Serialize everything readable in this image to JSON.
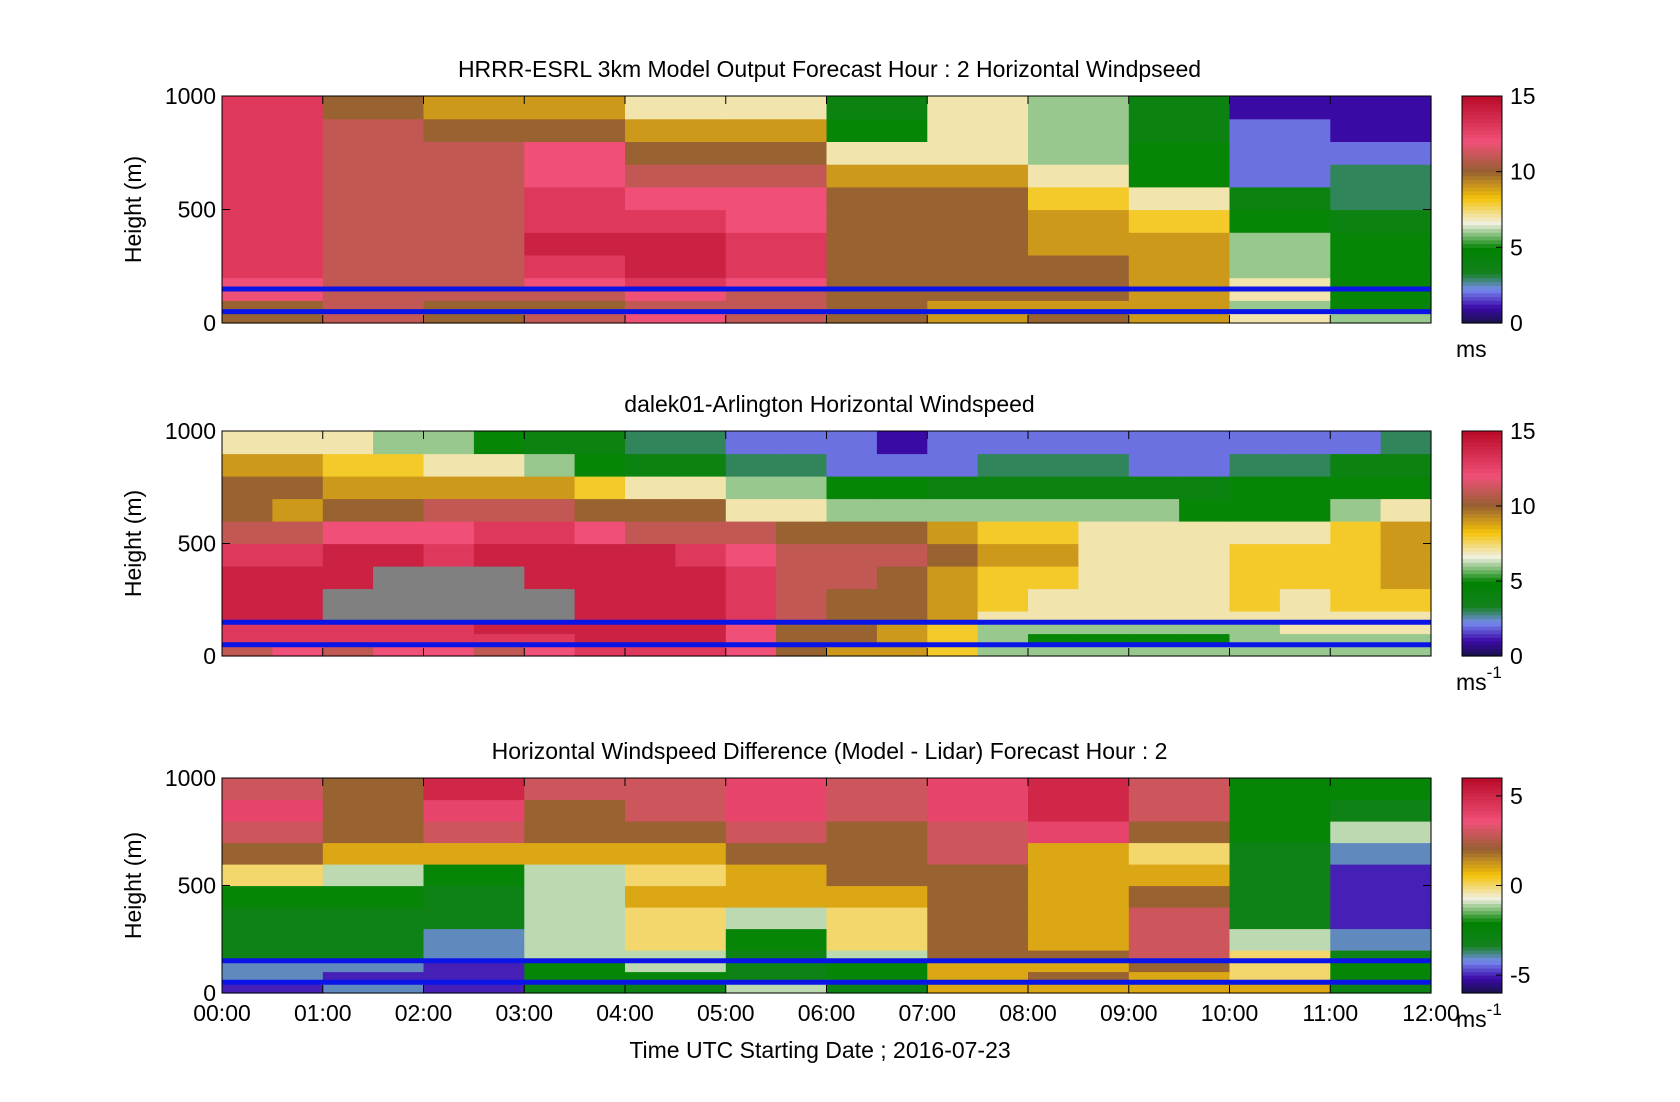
{
  "figure": {
    "xlabel": "Time UTC  Starting Date ; 2016-07-23",
    "x_ticks": [
      "00:00",
      "01:00",
      "02:00",
      "03:00",
      "04:00",
      "05:00",
      "06:00",
      "07:00",
      "08:00",
      "09:00",
      "10:00",
      "11:00",
      "12:00"
    ]
  },
  "colors": {
    "reference_lines": "#0a14e6",
    "missing": "#808080"
  },
  "chart_data": [
    {
      "type": "heatmap",
      "title": "HRRR-ESRL 3km Model Output   Forecast Hour : 2 Horizontal Windpseed",
      "ylabel": "Height (m)",
      "ylim": [
        0,
        1000
      ],
      "y_ticks": [
        "0",
        "500",
        "1000"
      ],
      "xlim_hours": [
        0,
        12
      ],
      "reference_heights_m": [
        150,
        50
      ],
      "colorbar": {
        "range": [
          0,
          15
        ],
        "ticks": [
          "0",
          "5",
          "10",
          "15"
        ],
        "unit": "ms",
        "unit_sup": ""
      },
      "time_hours": [
        0,
        1,
        2,
        3,
        4,
        5,
        6,
        7,
        8,
        9,
        10,
        11
      ],
      "heights_m": [
        0,
        50,
        100,
        150,
        200,
        300,
        400,
        500,
        600,
        700,
        800,
        900
      ],
      "values": [
        [
          10,
          11,
          10,
          11,
          12,
          11,
          10,
          9,
          10,
          9,
          7,
          6
        ],
        [
          10,
          11,
          10,
          10,
          11,
          11,
          10,
          9,
          9,
          9,
          6,
          5
        ],
        [
          12,
          11,
          11,
          11,
          12,
          11,
          10,
          10,
          10,
          9,
          7,
          5
        ],
        [
          12,
          11,
          11,
          12,
          13,
          12,
          10,
          10,
          10,
          9,
          7,
          5
        ],
        [
          13,
          11,
          11,
          13,
          14,
          13,
          10,
          10,
          10,
          9,
          6,
          5
        ],
        [
          13,
          11,
          11,
          14,
          14,
          13,
          10,
          10,
          9,
          9,
          6,
          5
        ],
        [
          13,
          11,
          11,
          13,
          13,
          12,
          10,
          10,
          9,
          8,
          5,
          4
        ],
        [
          13,
          11,
          11,
          13,
          12,
          12,
          10,
          10,
          8,
          7,
          4,
          3
        ],
        [
          13,
          11,
          11,
          12,
          11,
          11,
          9,
          9,
          7,
          5,
          2,
          3
        ],
        [
          13,
          11,
          11,
          12,
          10,
          10,
          7,
          7,
          6,
          5,
          2,
          2
        ],
        [
          13,
          11,
          10,
          10,
          9,
          9,
          5,
          7,
          6,
          4,
          2,
          1
        ],
        [
          13,
          10,
          9,
          9,
          7,
          7,
          4,
          7,
          6,
          4,
          1,
          1
        ]
      ]
    },
    {
      "type": "heatmap",
      "title": "dalek01-Arlington  Horizontal Windspeed",
      "ylabel": "Height (m)",
      "ylim": [
        0,
        1000
      ],
      "y_ticks": [
        "0",
        "500",
        "1000"
      ],
      "xlim_hours": [
        0,
        12
      ],
      "reference_heights_m": [
        150,
        50
      ],
      "colorbar": {
        "range": [
          0,
          15
        ],
        "ticks": [
          "0",
          "5",
          "10",
          "15"
        ],
        "unit": "ms",
        "unit_sup": "-1"
      },
      "time_hours": [
        0,
        0.5,
        1,
        1.5,
        2,
        2.5,
        3,
        3.5,
        4,
        4.5,
        5,
        5.5,
        6,
        6.5,
        7,
        7.5,
        8,
        8.5,
        9,
        9.5,
        10,
        10.5,
        11,
        11.5
      ],
      "heights_m": [
        0,
        50,
        100,
        150,
        200,
        300,
        400,
        500,
        600,
        700,
        800,
        900
      ],
      "values": [
        [
          11,
          12,
          11,
          12,
          12,
          11,
          12,
          13,
          13,
          13,
          12,
          10,
          9,
          9,
          8,
          6,
          6,
          6,
          6,
          6,
          6,
          6,
          6,
          6
        ],
        [
          13,
          13,
          13,
          13,
          13,
          13,
          13,
          14,
          14,
          14,
          12,
          10,
          10,
          9,
          8,
          6,
          5,
          5,
          5,
          5,
          6,
          6,
          6,
          6
        ],
        [
          13,
          13,
          13,
          13,
          13,
          14,
          14,
          14,
          14,
          14,
          12,
          10,
          10,
          9,
          8,
          6,
          6,
          6,
          6,
          6,
          6,
          7,
          7,
          7
        ],
        [
          14,
          14,
          -1,
          -1,
          -1,
          -1,
          -1,
          14,
          14,
          14,
          13,
          11,
          10,
          10,
          9,
          7,
          7,
          7,
          7,
          7,
          7,
          7,
          7,
          7
        ],
        [
          14,
          14,
          -1,
          -1,
          -1,
          -1,
          -1,
          14,
          14,
          14,
          13,
          11,
          10,
          10,
          9,
          8,
          7,
          7,
          7,
          7,
          8,
          7,
          8,
          8
        ],
        [
          14,
          14,
          14,
          -1,
          -1,
          -1,
          14,
          14,
          14,
          14,
          13,
          11,
          11,
          10,
          9,
          8,
          8,
          7,
          7,
          7,
          8,
          8,
          8,
          9
        ],
        [
          13,
          13,
          14,
          14,
          13,
          14,
          14,
          14,
          14,
          13,
          12,
          11,
          11,
          11,
          10,
          9,
          9,
          7,
          7,
          7,
          8,
          8,
          8,
          9
        ],
        [
          11,
          11,
          12,
          12,
          12,
          13,
          13,
          12,
          11,
          11,
          11,
          10,
          10,
          10,
          9,
          8,
          8,
          7,
          7,
          7,
          7,
          7,
          8,
          9
        ],
        [
          10,
          9,
          10,
          10,
          11,
          11,
          11,
          10,
          10,
          10,
          7,
          7,
          6,
          6,
          6,
          6,
          6,
          6,
          6,
          5,
          5,
          5,
          6,
          7
        ],
        [
          10,
          10,
          9,
          9,
          9,
          9,
          9,
          8,
          7,
          7,
          6,
          6,
          5,
          5,
          4,
          4,
          4,
          4,
          4,
          4,
          5,
          5,
          5,
          5
        ],
        [
          9,
          9,
          8,
          8,
          7,
          7,
          6,
          5,
          4,
          4,
          3,
          3,
          2,
          2,
          2,
          3,
          3,
          3,
          2,
          2,
          3,
          3,
          4,
          4
        ],
        [
          7,
          7,
          7,
          6,
          6,
          5,
          4,
          4,
          3,
          3,
          2,
          2,
          2,
          1,
          2,
          2,
          2,
          2,
          2,
          2,
          2,
          2,
          2,
          3
        ]
      ]
    },
    {
      "type": "heatmap",
      "title": "Horizontal Windspeed Difference (Model - Lidar) Forecast Hour : 2",
      "ylabel": "Height (m)",
      "ylim": [
        0,
        1000
      ],
      "y_ticks": [
        "0",
        "500",
        "1000"
      ],
      "xlim_hours": [
        0,
        12
      ],
      "reference_heights_m": [
        150,
        50
      ],
      "colorbar": {
        "range": [
          -6,
          6
        ],
        "ticks": [
          "-5",
          "0",
          "5"
        ],
        "unit": "ms",
        "unit_sup": "-1"
      },
      "time_hours": [
        0,
        1,
        2,
        3,
        4,
        5,
        6,
        7,
        8,
        9,
        10,
        11
      ],
      "heights_m": [
        0,
        50,
        100,
        150,
        200,
        300,
        400,
        500,
        600,
        700,
        800,
        900
      ],
      "values": [
        [
          -5,
          -4,
          -5,
          -3,
          -3,
          -1,
          -3,
          1,
          1,
          1,
          1,
          -3
        ],
        [
          -4,
          -5,
          -5,
          -2,
          -2,
          -3,
          -2,
          1,
          2,
          1,
          0,
          -2
        ],
        [
          -4,
          -4,
          -5,
          -2,
          -1,
          -3,
          -2,
          1,
          1,
          2,
          0,
          -2
        ],
        [
          -3,
          -3,
          -4,
          -1,
          -1,
          -3,
          -1,
          2,
          2,
          3,
          0,
          -3
        ],
        [
          -3,
          -3,
          -4,
          -1,
          0,
          -2,
          0,
          2,
          1,
          3,
          -1,
          -4
        ],
        [
          -3,
          -3,
          -3,
          -1,
          0,
          -1,
          0,
          2,
          1,
          3,
          -3,
          -5
        ],
        [
          -2,
          -2,
          -3,
          -1,
          1,
          1,
          1,
          2,
          1,
          2,
          -3,
          -5
        ],
        [
          0,
          -1,
          -2,
          -1,
          0,
          1,
          2,
          2,
          1,
          1,
          -3,
          -5
        ],
        [
          2,
          1,
          1,
          1,
          1,
          2,
          2,
          3,
          1,
          0,
          -3,
          -4
        ],
        [
          3,
          2,
          3,
          2,
          2,
          3,
          2,
          3,
          4,
          2,
          -2,
          -1
        ],
        [
          4,
          2,
          4,
          2,
          3,
          4,
          3,
          4,
          5,
          3,
          -2,
          -3
        ],
        [
          3,
          2,
          5,
          3,
          3,
          4,
          3,
          4,
          5,
          3,
          -2,
          -2
        ]
      ]
    }
  ]
}
